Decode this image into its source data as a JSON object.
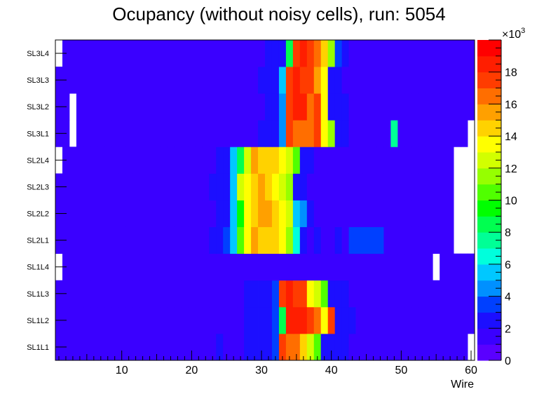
{
  "chart_data": {
    "type": "heatmap",
    "title": "Ocupancy (without noisy cells), run: 5054",
    "xlabel": "Wire",
    "ylabel": "",
    "x_range": [
      0.5,
      60.5
    ],
    "x_ticks": [
      10,
      20,
      30,
      40,
      50,
      60
    ],
    "layers": [
      "SL1L1",
      "SL1L2",
      "SL1L3",
      "SL1L4",
      "SL2L1",
      "SL2L2",
      "SL2L3",
      "SL2L4",
      "SL3L1",
      "SL3L2",
      "SL3L3",
      "SL3L4"
    ],
    "z_range": [
      0,
      20
    ],
    "z_unit": "×10",
    "z_exponent": "3",
    "z_ticks": [
      0,
      2,
      4,
      6,
      8,
      10,
      12,
      14,
      16,
      18
    ],
    "palette": [
      "#5a00ff",
      "#3a00ff",
      "#1c0fff",
      "#0040ff",
      "#0090ff",
      "#00c8ff",
      "#00ffdc",
      "#00ff96",
      "#00ff50",
      "#00ff00",
      "#50ff00",
      "#96ff00",
      "#d2ff00",
      "#ffff00",
      "#ffd200",
      "#ffa000",
      "#ff6e00",
      "#ff3c00",
      "#ff1e00",
      "#ff0000"
    ],
    "default_value": 1.0,
    "empty_cells": [
      {
        "layer": 0,
        "wires": [
          60
        ]
      },
      {
        "layer": 3,
        "wires": [
          1,
          55
        ]
      },
      {
        "layer": 4,
        "wires": [
          58,
          59,
          60
        ]
      },
      {
        "layer": 5,
        "wires": [
          58,
          59,
          60
        ]
      },
      {
        "layer": 6,
        "wires": [
          58,
          59,
          60
        ]
      },
      {
        "layer": 7,
        "wires": [
          1,
          58,
          59,
          60
        ]
      },
      {
        "layer": 8,
        "wires": [
          3,
          60
        ]
      },
      {
        "layer": 9,
        "wires": [
          3
        ]
      },
      {
        "layer": 11,
        "wires": [
          1
        ]
      }
    ],
    "cells": [
      {
        "layer": 0,
        "start": 24,
        "values": [
          2.5,
          1,
          1,
          1,
          2.2,
          2.2,
          2.2,
          2.5,
          3,
          17,
          16,
          16.5,
          14,
          12,
          10,
          2.2,
          2.2,
          2.2,
          2.2
        ]
      },
      {
        "layer": 1,
        "start": 28,
        "values": [
          2.2,
          2.2,
          2.2,
          2.2,
          3,
          8,
          18,
          18,
          18,
          17,
          16,
          13,
          17,
          2.2,
          2.2,
          2.2
        ]
      },
      {
        "layer": 2,
        "start": 28,
        "values": [
          2.2,
          2.2,
          2.2,
          2.2,
          3,
          17,
          18,
          17,
          17,
          13,
          12,
          10,
          2.2,
          2.2,
          2.2
        ]
      },
      {
        "layer": 4,
        "start": 23,
        "values": [
          2.2,
          2.2,
          3,
          5,
          10,
          13,
          15,
          14,
          14,
          14,
          13,
          11,
          6,
          2.2,
          1,
          2.2,
          1,
          1,
          2.2,
          1,
          3,
          3,
          3,
          3,
          3
        ]
      },
      {
        "layer": 5,
        "start": 24,
        "values": [
          2.2,
          2.2,
          5,
          9,
          13,
          14,
          15,
          15,
          14,
          13,
          12,
          5,
          4,
          2.2
        ]
      },
      {
        "layer": 6,
        "start": 23,
        "values": [
          2.2,
          2.2,
          2.2,
          5,
          12,
          13,
          14,
          15,
          14,
          13,
          12,
          11,
          2.2,
          2.2
        ]
      },
      {
        "layer": 7,
        "start": 24,
        "values": [
          2.2,
          2.2,
          5,
          8,
          12,
          15,
          14,
          14,
          14,
          13,
          12,
          10,
          2.2,
          2.2
        ]
      },
      {
        "layer": 8,
        "start": 30,
        "values": [
          2.2,
          2.2,
          2.2,
          4,
          17,
          16,
          16,
          16,
          17,
          13,
          11,
          2.2,
          2.2
        ]
      },
      {
        "layer": 8,
        "start": 49,
        "values": [
          7
        ]
      },
      {
        "layer": 9,
        "start": 31,
        "values": [
          2.2,
          2.2,
          4,
          17,
          18,
          18,
          16,
          17,
          13,
          2.2,
          2.2,
          2.2
        ]
      },
      {
        "layer": 10,
        "start": 30,
        "values": [
          2.2,
          2.2,
          2.2,
          5,
          17,
          18,
          17,
          17,
          15,
          13,
          2.2,
          2.2
        ]
      },
      {
        "layer": 11,
        "start": 31,
        "values": [
          2.2,
          2.2,
          2.2,
          8,
          17,
          18,
          17,
          16,
          14,
          11,
          3,
          2.2
        ]
      }
    ]
  }
}
